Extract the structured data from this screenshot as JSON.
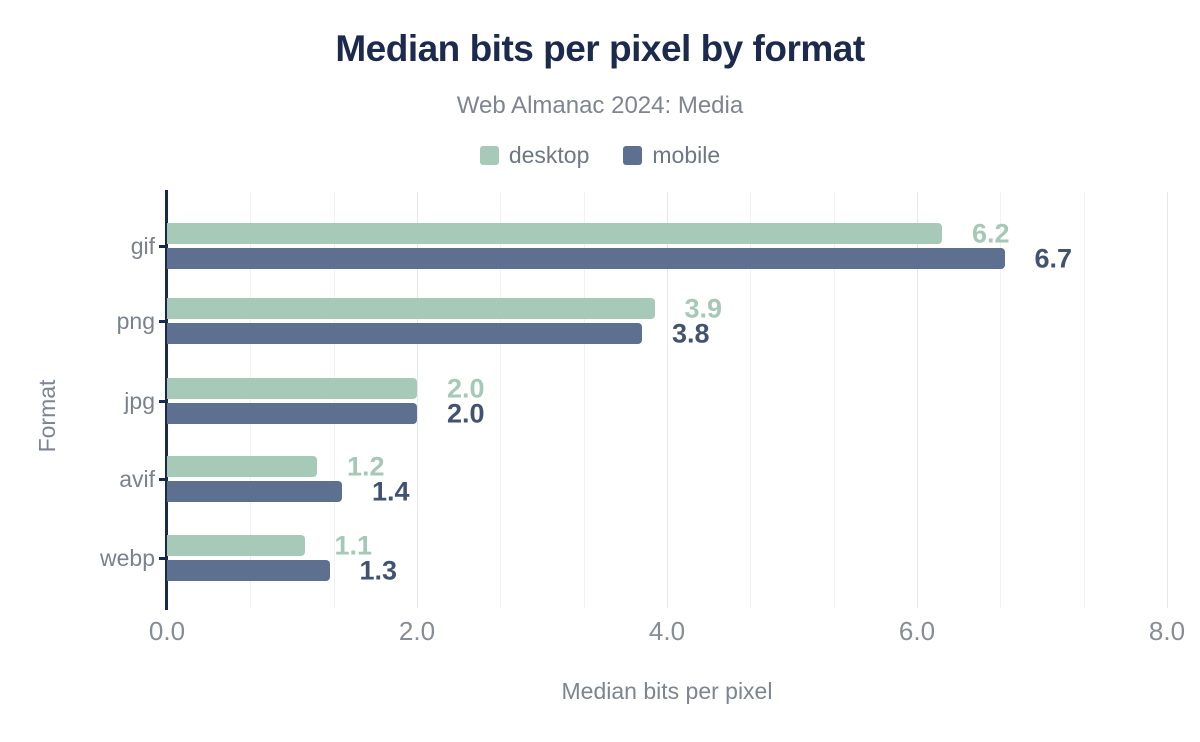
{
  "header": {
    "title": "Median bits per pixel by format",
    "subtitle": "Web Almanac 2024: Media"
  },
  "legend": [
    {
      "label": "desktop",
      "color": "#a7cab8"
    },
    {
      "label": "mobile",
      "color": "#5e7090"
    }
  ],
  "chart_data": {
    "type": "bar",
    "orientation": "horizontal",
    "title": "Median bits per pixel by format",
    "subtitle": "Web Almanac 2024: Media",
    "categories": [
      "gif",
      "png",
      "jpg",
      "avif",
      "webp"
    ],
    "series": [
      {
        "name": "desktop",
        "color": "#a7cab8",
        "label_color": "#a5c9b6",
        "values": [
          6.2,
          3.9,
          2.0,
          1.2,
          1.1
        ],
        "labels": [
          "6.2",
          "3.9",
          "2.0",
          "1.2",
          "1.1"
        ]
      },
      {
        "name": "mobile",
        "color": "#5e7090",
        "label_color": "#42536f",
        "values": [
          6.7,
          3.8,
          2.0,
          1.4,
          1.3
        ],
        "labels": [
          "6.7",
          "3.8",
          "2.0",
          "1.4",
          "1.3"
        ]
      }
    ],
    "xlabel": "Median bits per pixel",
    "ylabel": "Format",
    "xlim": [
      0,
      8
    ],
    "xticks": [
      0.0,
      2.0,
      4.0,
      6.0,
      8.0
    ],
    "xtick_labels": [
      "0.0",
      "2.0",
      "4.0",
      "6.0",
      "8.0"
    ],
    "grid": {
      "vertical": true,
      "minor_gridlines_per_major": 2,
      "legend_position": "top"
    }
  },
  "colors": {
    "title": "#1c2b4d",
    "axis_line": "#172a4d",
    "gridline_minor": "#f0f1f3",
    "gridline_major": "#e6e8ea",
    "muted_text": "#7d8591"
  }
}
